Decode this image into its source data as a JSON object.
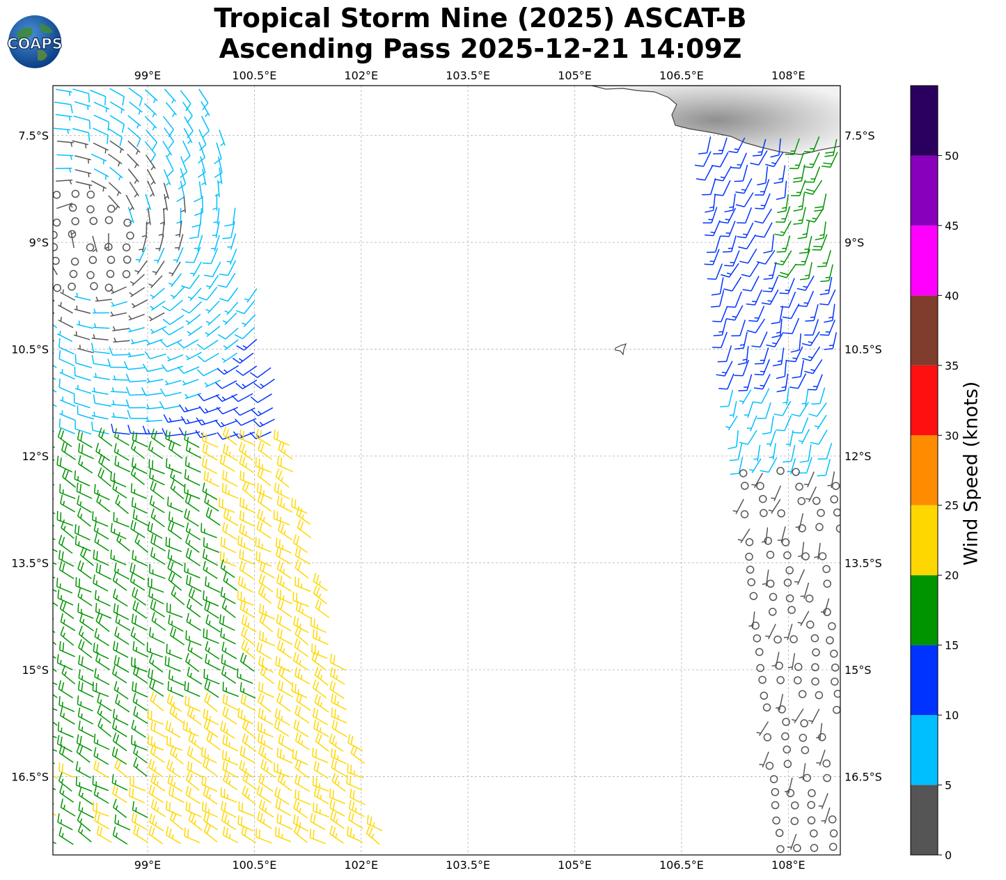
{
  "title": {
    "line1": "Tropical Storm Nine (2025) ASCAT-B",
    "line2": "Ascending Pass 2025-12-21 14:09Z"
  },
  "logo": {
    "text": "COAPS"
  },
  "map": {
    "lon_ticks": [
      "99°E",
      "100.5°E",
      "102°E",
      "103.5°E",
      "105°E",
      "106.5°E",
      "108°E"
    ],
    "lon_values": [
      99,
      100.5,
      102,
      103.5,
      105,
      106.5,
      108
    ],
    "lat_ticks": [
      "7.5°S",
      "9°S",
      "10.5°S",
      "12°S",
      "13.5°S",
      "15°S",
      "16.5°S"
    ],
    "lat_values": [
      -7.5,
      -9,
      -10.5,
      -12,
      -13.5,
      -15,
      -16.5
    ],
    "extent": {
      "lon_min": 97.67,
      "lon_max": 108.73,
      "lat_max": -6.8,
      "lat_min": -17.6
    },
    "grid": true
  },
  "colorbar": {
    "label": "Wind Speed (knots)",
    "tick_labels": [
      "0",
      "5",
      "10",
      "15",
      "20",
      "25",
      "30",
      "35",
      "40",
      "45",
      "50"
    ],
    "bins": [
      {
        "min": 0,
        "max": 5,
        "color": "#555555"
      },
      {
        "min": 5,
        "max": 10,
        "color": "#00bfff"
      },
      {
        "min": 10,
        "max": 15,
        "color": "#0033ff"
      },
      {
        "min": 15,
        "max": 20,
        "color": "#009400"
      },
      {
        "min": 20,
        "max": 25,
        "color": "#ffd700"
      },
      {
        "min": 25,
        "max": 30,
        "color": "#ff8c00"
      },
      {
        "min": 30,
        "max": 35,
        "color": "#ff1010"
      },
      {
        "min": 35,
        "max": 40,
        "color": "#803c2c"
      },
      {
        "min": 40,
        "max": 45,
        "color": "#ff00ff"
      },
      {
        "min": 45,
        "max": 50,
        "color": "#8800bb"
      },
      {
        "min": 50,
        "max": 55,
        "color": "#2a005f"
      }
    ]
  },
  "colors": {
    "calm": "#555555",
    "light": "#00bfff",
    "moderate": "#0033ff",
    "fresh": "#009400",
    "strong": "#ffd700",
    "land": "#d9d9d9",
    "coastline": "#444444"
  }
}
